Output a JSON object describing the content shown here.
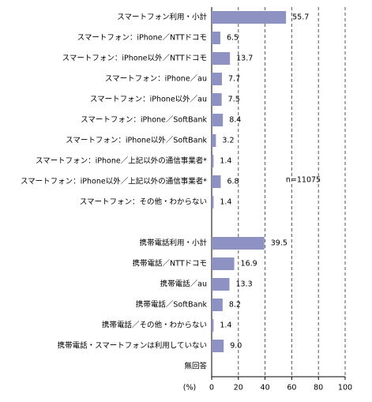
{
  "chart_data": {
    "type": "bar",
    "orientation": "horizontal",
    "categories": [
      "スマートフォン利用・小計",
      "スマートフォン：iPhone／NTTドコモ",
      "スマートフォン：iPhone以外／NTTドコモ",
      "スマートフォン：iPhone／au",
      "スマートフォン：iPhone以外／au",
      "スマートフォン：iPhone／SoftBank",
      "スマートフォン：iPhone以外／SoftBank",
      "スマートフォン：iPhone／上記以外の通信事業者*",
      "スマートフォン：iPhone以外／上記以外の通信事業者*",
      "スマートフォン：その他・わからない",
      null,
      "携帯電話利用・小計",
      "携帯電話／NTTドコモ",
      "携帯電話／au",
      "携帯電話／SoftBank",
      "携帯電話／その他・わからない",
      "携帯電話・スマートフォンは利用していない",
      "無回答"
    ],
    "values": [
      55.7,
      6.5,
      13.7,
      7.7,
      7.5,
      8.4,
      3.2,
      1.4,
      6.8,
      1.4,
      null,
      39.5,
      16.9,
      13.3,
      8.2,
      1.4,
      9.0,
      null
    ],
    "value_labels": [
      "55.7",
      "6.5",
      "13.7",
      "7.7",
      "7.5",
      "8.4",
      "3.2",
      "1.4",
      "6.8",
      "1.4",
      null,
      "39.5",
      "16.9",
      "13.3",
      "8.2",
      "1.4",
      "9.0",
      null
    ],
    "color": "#8e92c2",
    "xlim": [
      0,
      100
    ],
    "xticks": [
      0,
      20,
      40,
      60,
      80,
      100
    ],
    "x_axis_label": "(%)",
    "annotation": "n=11075",
    "grid": true
  }
}
